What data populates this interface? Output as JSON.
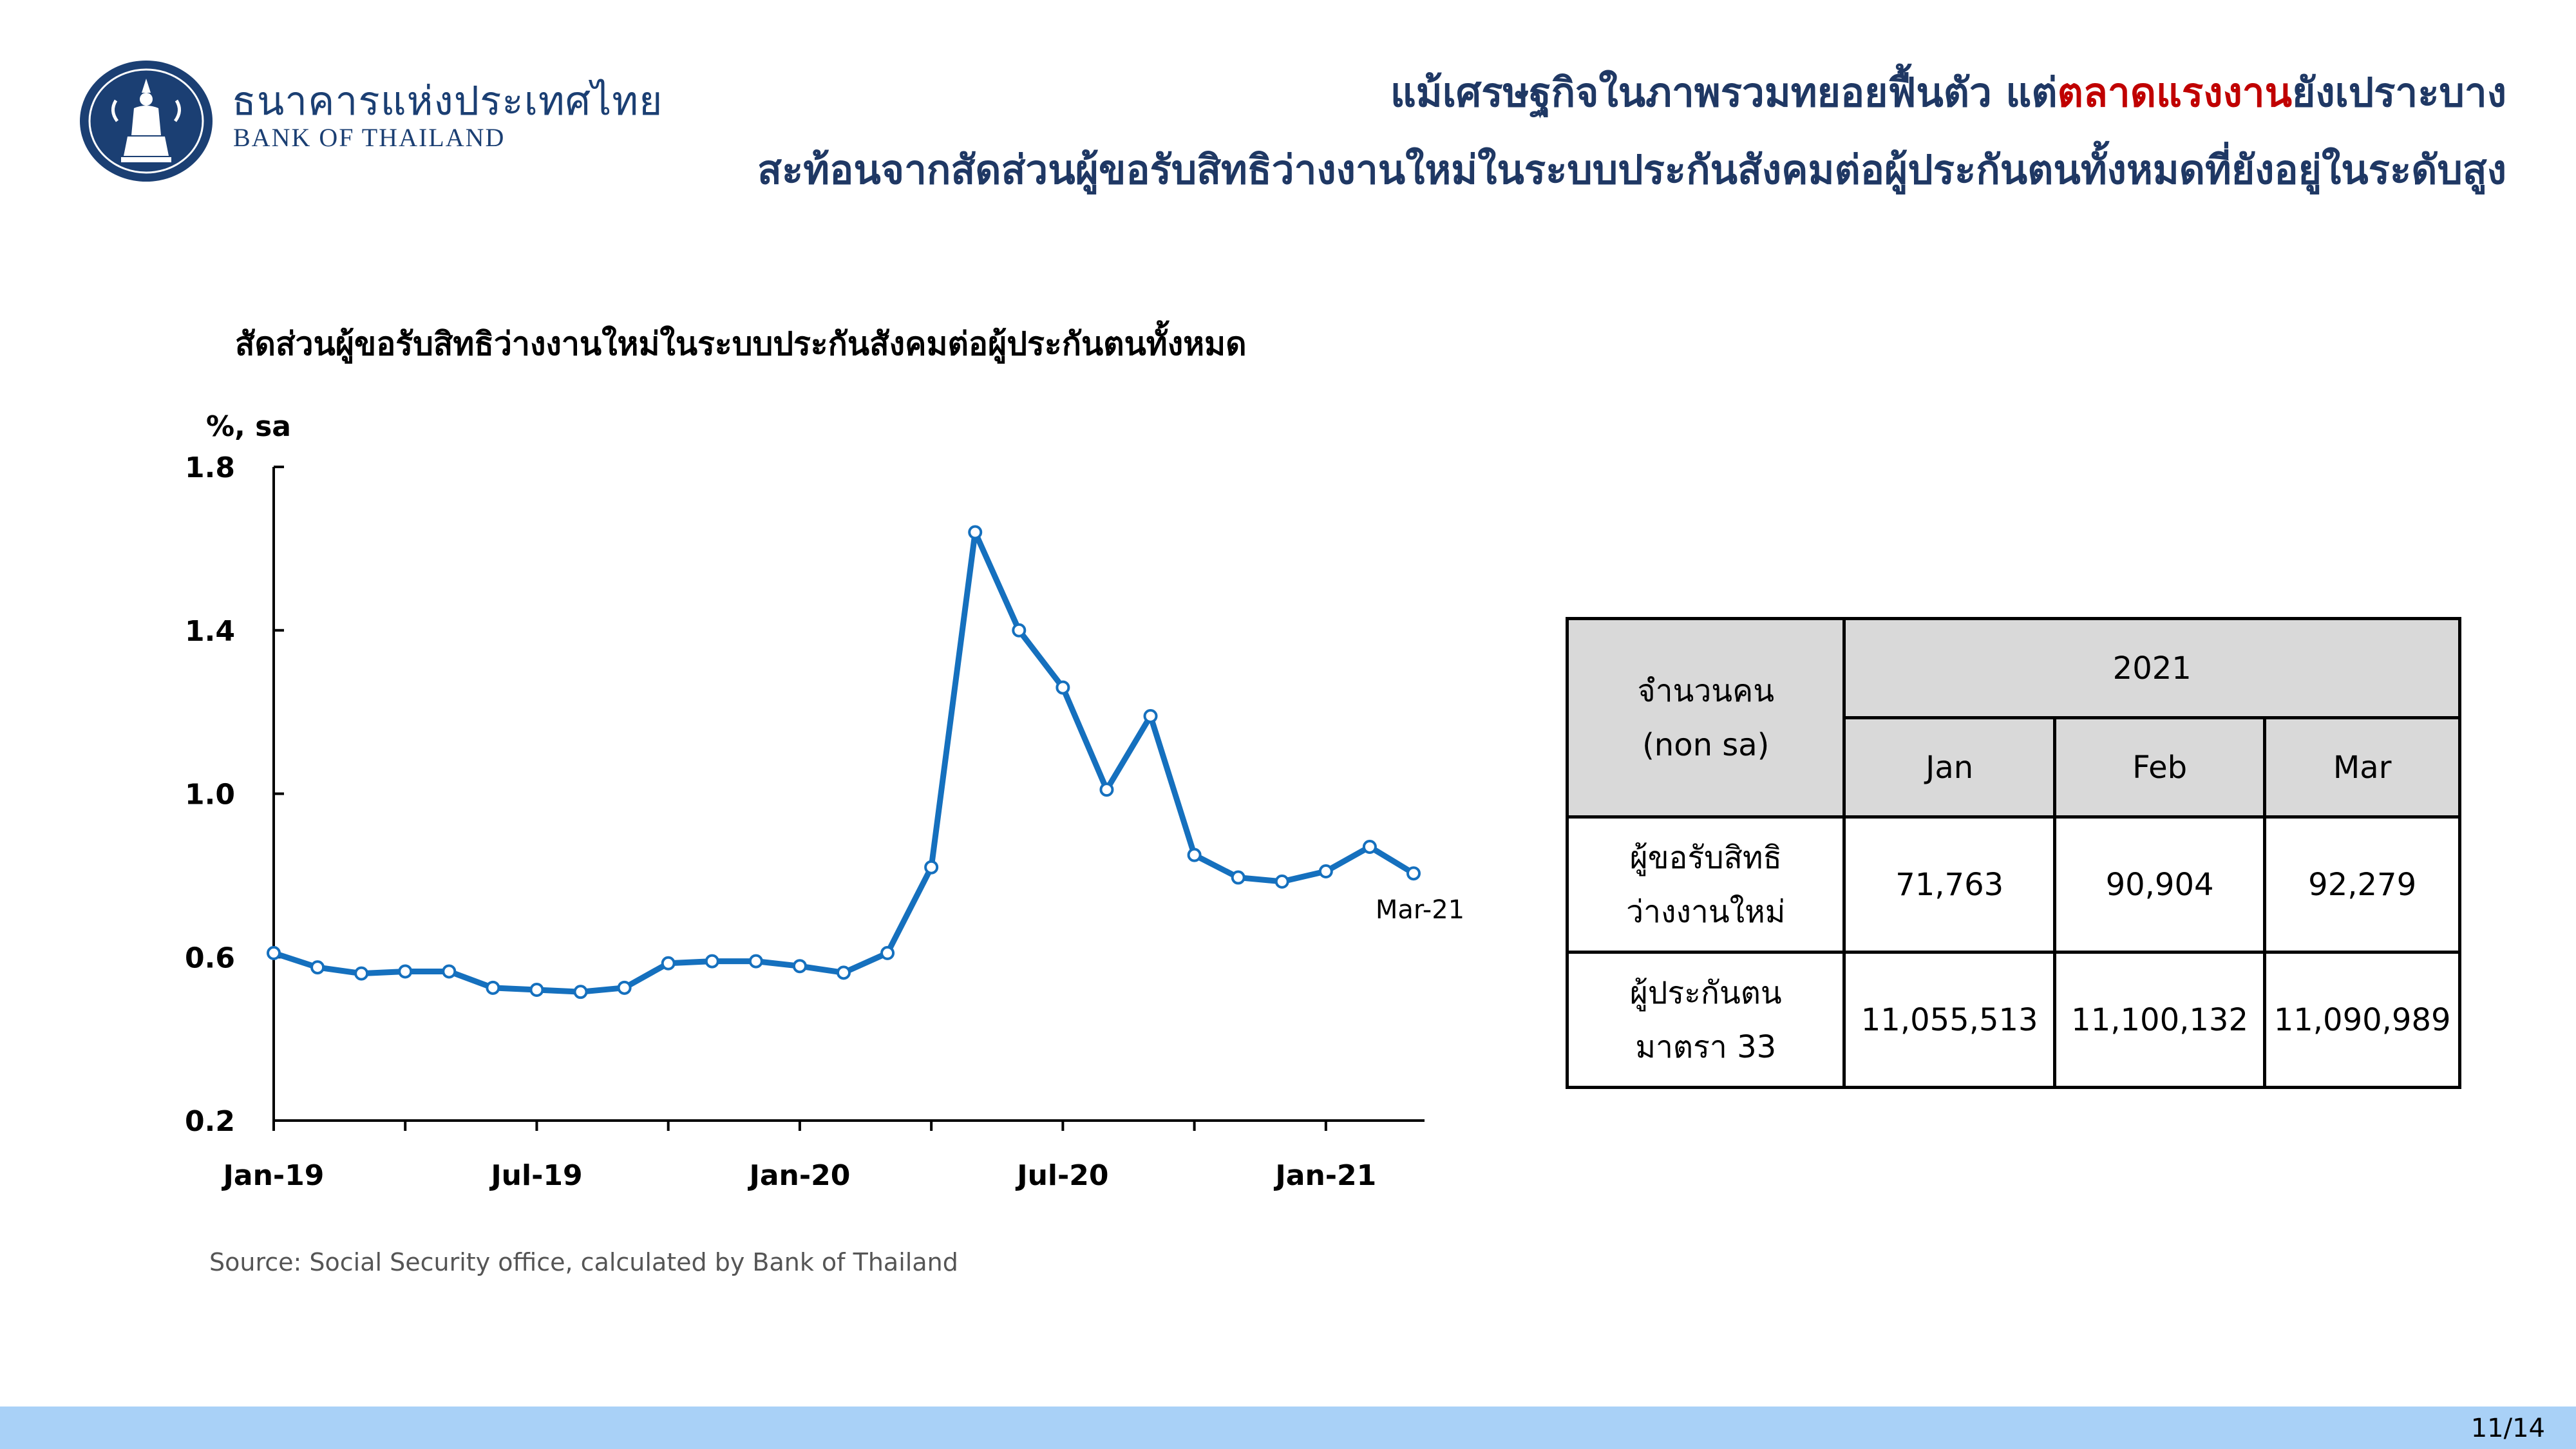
{
  "header": {
    "org_name_th": "ธนาคารแห่งประเทศไทย",
    "org_name_en": "BANK OF THAILAND",
    "headline_line1_a": "แม้เศรษฐกิจในภาพรวมทยอยฟื้นตัว แต่",
    "headline_line1_highlight": "ตลาดแรงงาน",
    "headline_line1_b": "ยังเปราะบาง",
    "headline_line2": "สะท้อนจากสัดส่วนผู้ขอรับสิทธิว่างงานใหม่ในระบบประกันสังคมต่อผู้ประกันตนทั้งหมดที่ยังอยู่ในระดับสูง",
    "highlight_color": "#c00000",
    "text_color": "#1f3864"
  },
  "chart_data": {
    "type": "line",
    "title": "สัดส่วนผู้ขอรับสิทธิว่างงานใหม่ในระบบประกันสังคมต่อผู้ประกันตนทั้งหมด",
    "ylabel": "%, sa",
    "xlabel": "",
    "ylim": [
      0.2,
      1.8
    ],
    "yticks": [
      "0.2",
      "0.6",
      "1.0",
      "1.4",
      "1.8"
    ],
    "x": [
      "Jan-19",
      "Feb-19",
      "Mar-19",
      "Apr-19",
      "May-19",
      "Jun-19",
      "Jul-19",
      "Aug-19",
      "Sep-19",
      "Oct-19",
      "Nov-19",
      "Dec-19",
      "Jan-20",
      "Feb-20",
      "Mar-20",
      "Apr-20",
      "May-20",
      "Jun-20",
      "Jul-20",
      "Aug-20",
      "Sep-20",
      "Oct-20",
      "Nov-20",
      "Dec-20",
      "Jan-21",
      "Feb-21",
      "Mar-21"
    ],
    "xticklabels": [
      {
        "index": 0,
        "label": "Jan-19"
      },
      {
        "index": 6,
        "label": "Jul-19"
      },
      {
        "index": 12,
        "label": "Jan-20"
      },
      {
        "index": 18,
        "label": "Jul-20"
      },
      {
        "index": 24,
        "label": "Jan-21"
      }
    ],
    "series": [
      {
        "values": [
          0.61,
          0.575,
          0.56,
          0.565,
          0.565,
          0.525,
          0.52,
          0.515,
          0.525,
          0.585,
          0.59,
          0.59,
          0.578,
          0.562,
          0.61,
          0.82,
          1.64,
          1.4,
          1.26,
          1.01,
          1.19,
          0.85,
          0.795,
          0.785,
          0.81,
          0.87,
          0.805
        ],
        "color": "#1570be"
      }
    ],
    "end_label": "Mar-21",
    "grid": false,
    "legend": "none"
  },
  "table": {
    "header_label_line1": "จำนวนคน",
    "header_label_line2": "(non sa)",
    "year": "2021",
    "months": [
      "Jan",
      "Feb",
      "Mar"
    ],
    "rows": [
      {
        "label_line1": "ผู้ขอรับสิทธิ",
        "label_line2": "ว่างงานใหม่",
        "values": [
          "71,763",
          "90,904",
          "92,279"
        ]
      },
      {
        "label_line1": "ผู้ประกันตน",
        "label_line2": "มาตรา 33",
        "values": [
          "11,055,513",
          "11,100,132",
          "11,090,989"
        ]
      }
    ]
  },
  "source": "Source: Social Security office, calculated by Bank of Thailand",
  "page_number": "11/14"
}
